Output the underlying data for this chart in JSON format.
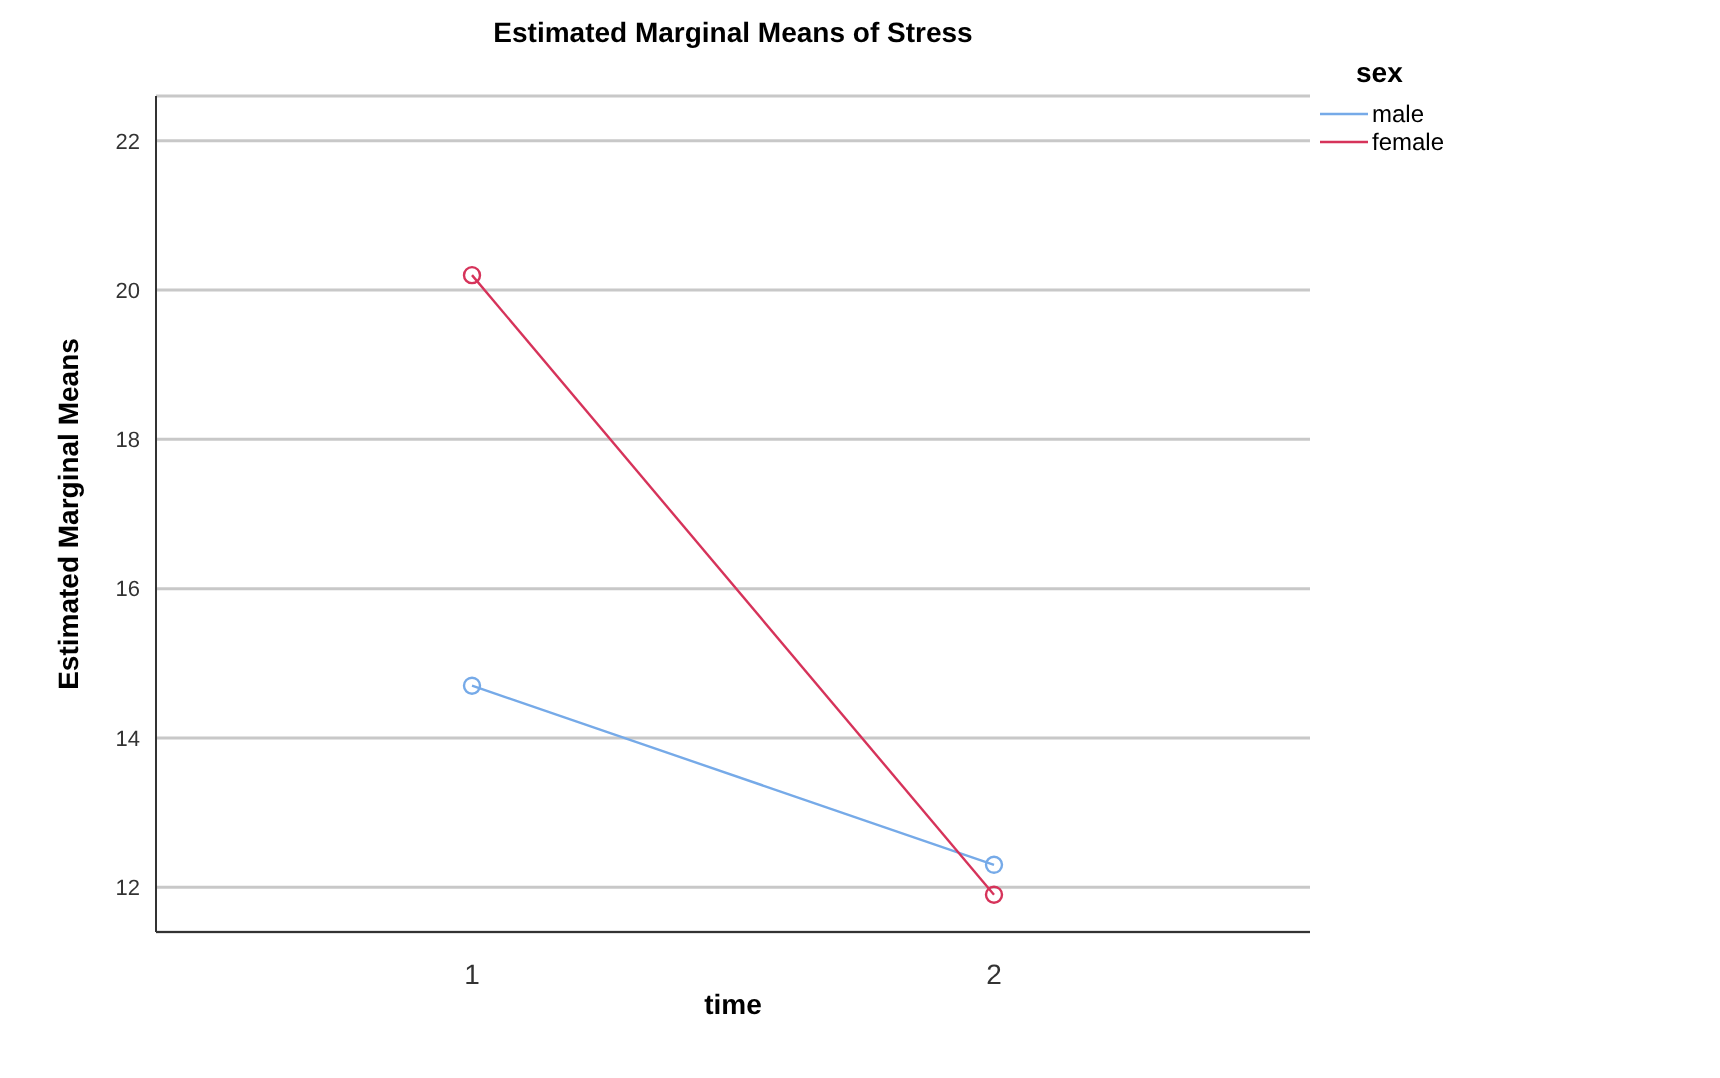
{
  "chart_data": {
    "type": "line",
    "title": "Estimated Marginal Means of Stress",
    "xlabel": "time",
    "ylabel": "Estimated Marginal Means",
    "legend_title": "sex",
    "categories": [
      "1",
      "2"
    ],
    "series": [
      {
        "name": "male",
        "color": "#76aae8",
        "values": [
          14.7,
          12.3
        ]
      },
      {
        "name": "female",
        "color": "#d6335a",
        "values": [
          20.2,
          11.9
        ]
      }
    ],
    "ylim": [
      11.4,
      22.6
    ],
    "yticks": [
      12,
      14,
      16,
      18,
      20,
      22
    ],
    "grid": "y",
    "legend": "top right",
    "marker": "circle",
    "line_style": "solid"
  }
}
